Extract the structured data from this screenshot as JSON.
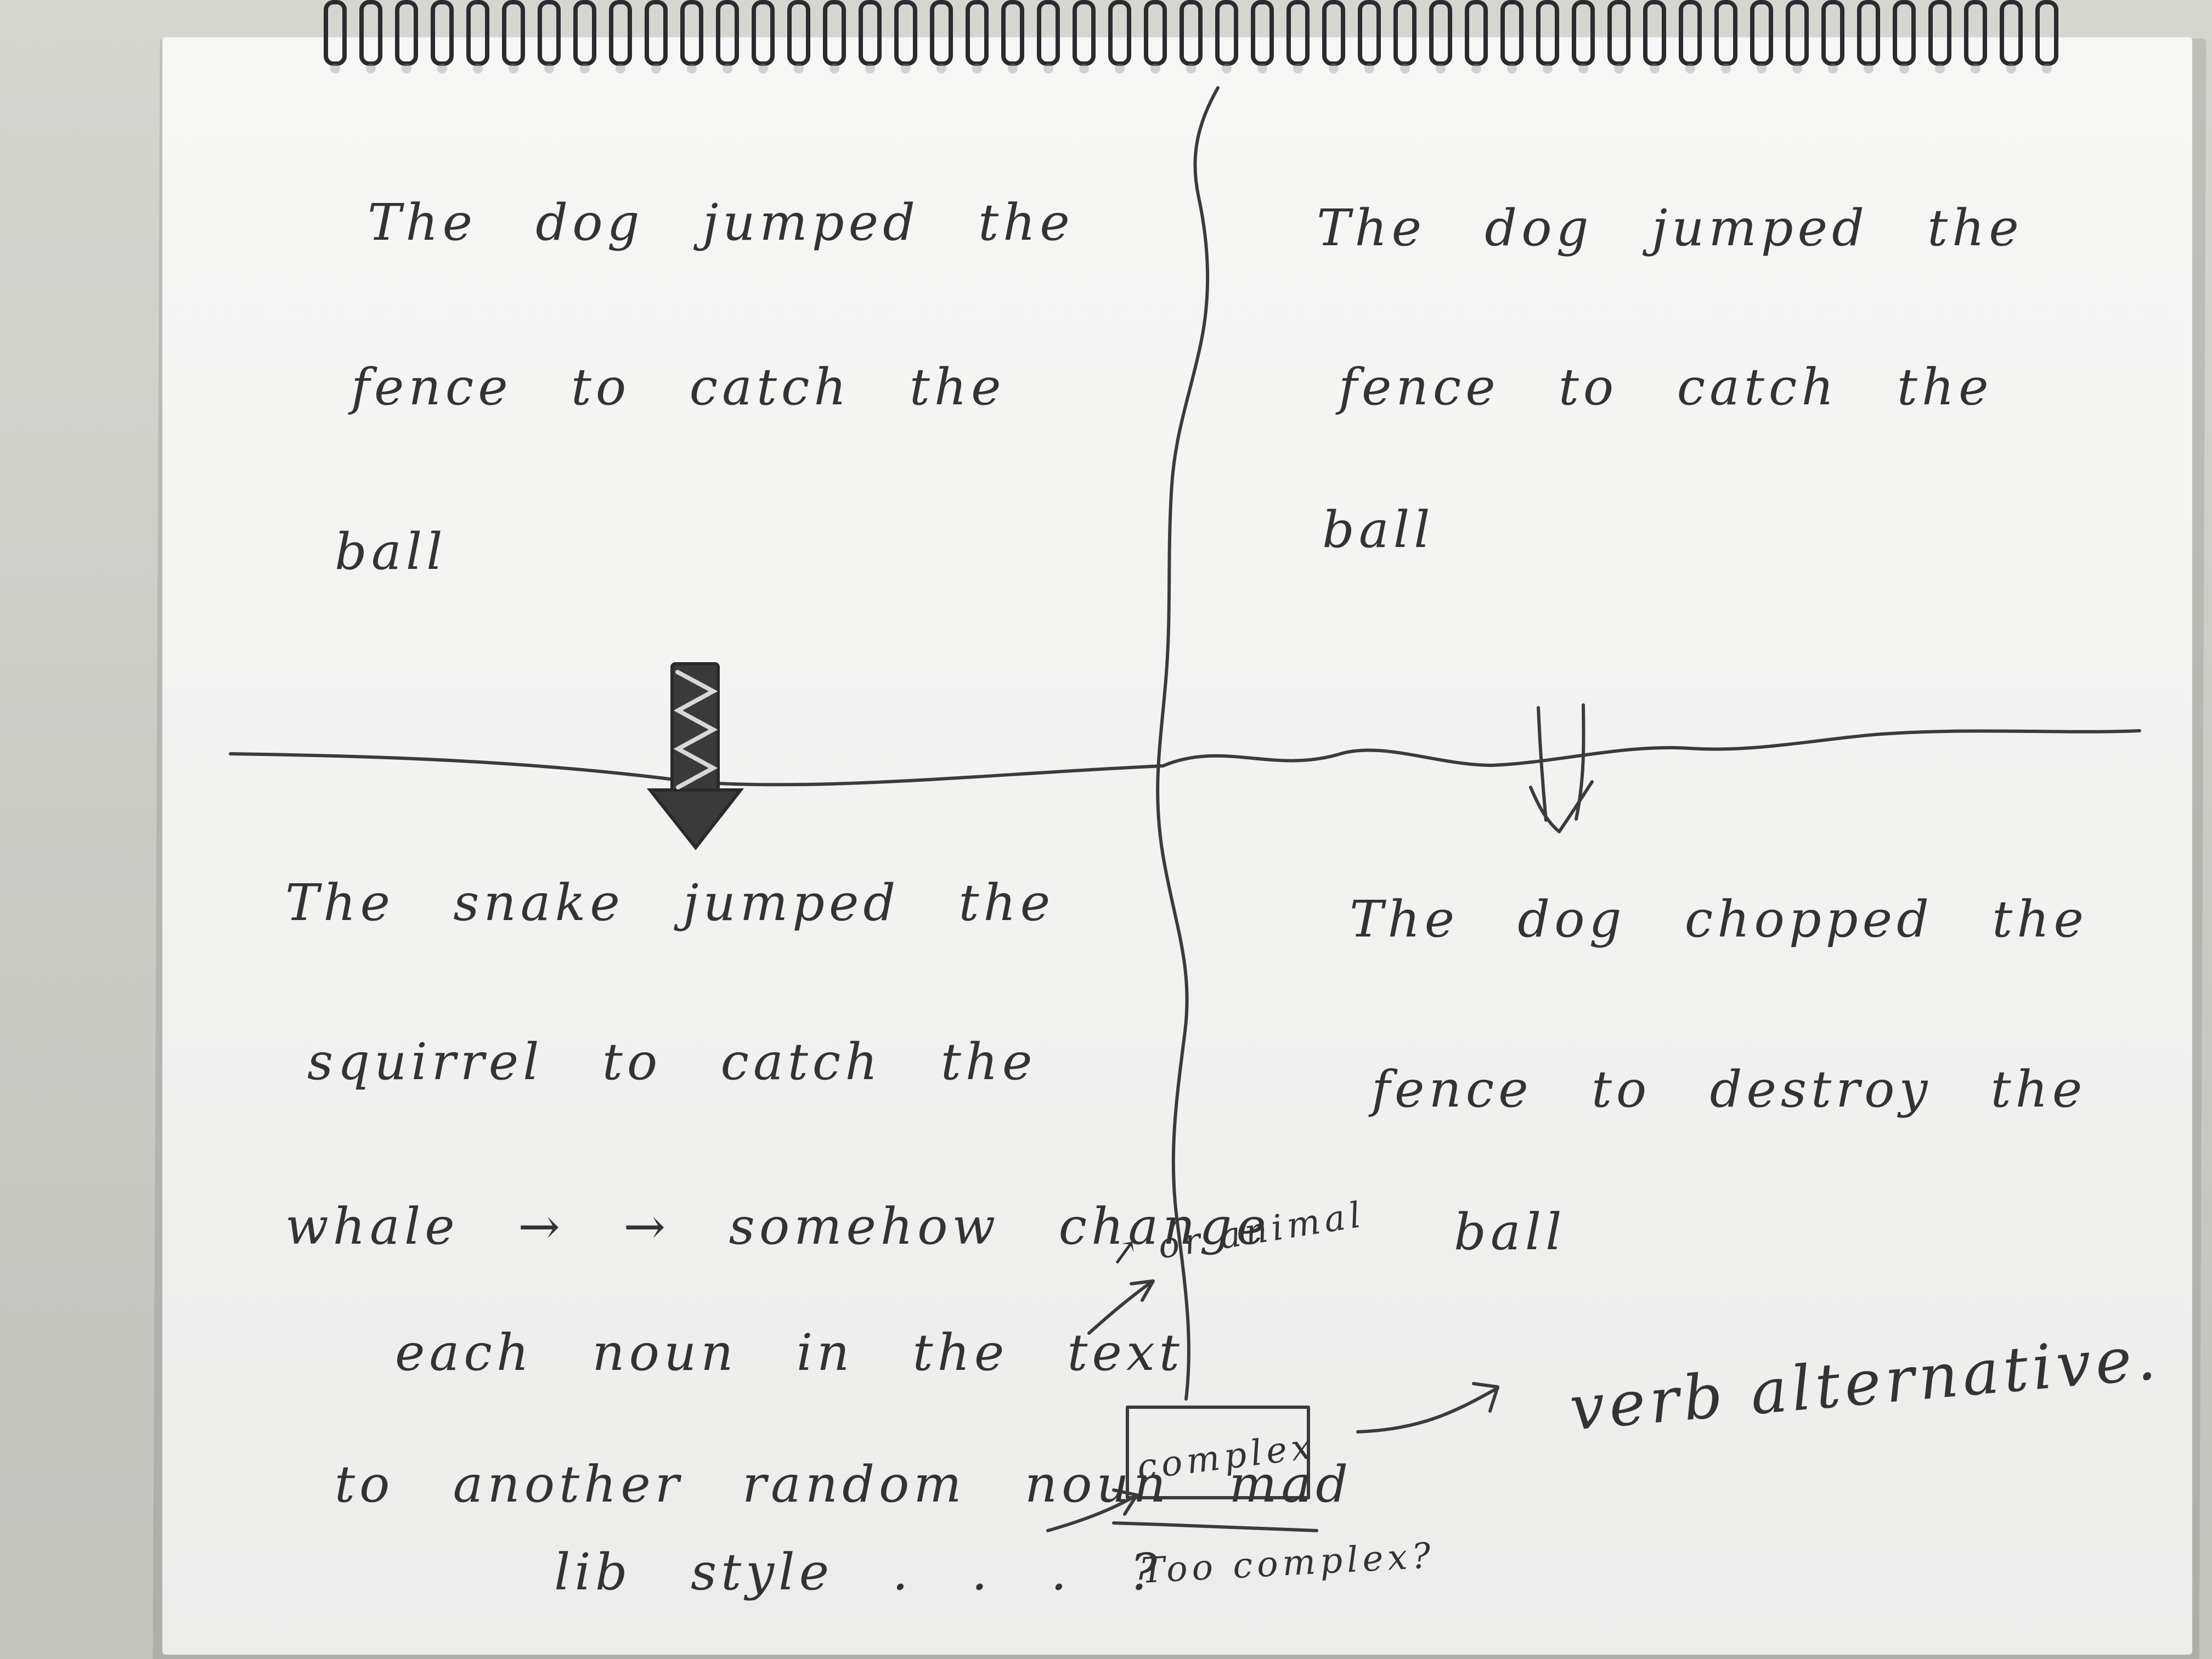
{
  "quadrant_top_left": {
    "lines": [
      "The dog jumped the",
      "fence to catch the",
      "ball"
    ]
  },
  "quadrant_top_right": {
    "lines": [
      "The dog jumped the",
      "fence to catch the",
      "ball"
    ]
  },
  "quadrant_bottom_left": {
    "lines": [
      "The snake jumped the",
      "squirrel to catch the",
      "whale → → somehow change",
      "each noun in the text",
      "to another random noun mad",
      "lib style . . . ?"
    ]
  },
  "quadrant_bottom_right": {
    "lines": [
      "The dog chopped the",
      "fence to destroy the",
      "ball"
    ]
  },
  "annotations": {
    "or_animal": "↗ or animal",
    "complex_box": "complex",
    "too_complex": "Too complex?",
    "verb_alternative": "verb alternative."
  },
  "colors": {
    "ink": "#333333",
    "paper": "#f3f3f2",
    "background": "#cfcfcb",
    "spiral": "#2b2b2f"
  }
}
